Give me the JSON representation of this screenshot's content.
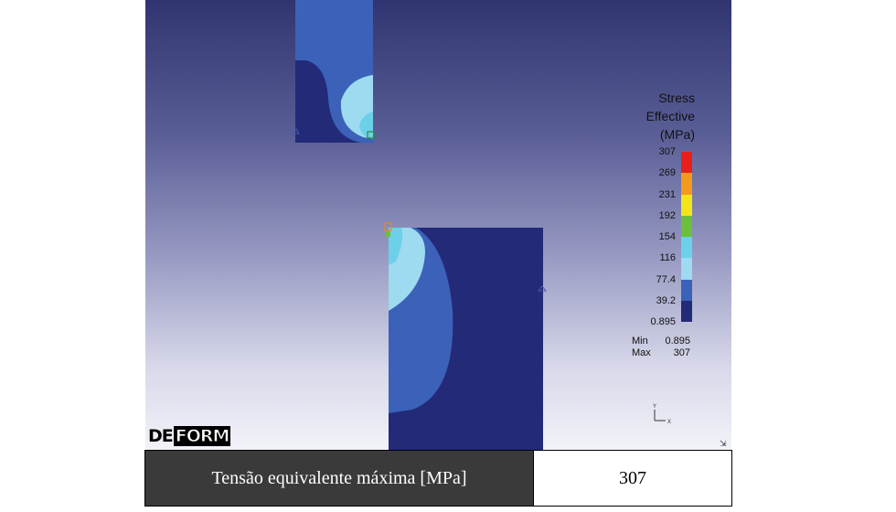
{
  "legend": {
    "title_lines": [
      "Stress",
      "Effective",
      "(MPa)"
    ],
    "ticks": [
      "307",
      "269",
      "231",
      "192",
      "154",
      "116",
      "77.4",
      "39.2",
      "0.895"
    ],
    "colors": [
      "#e8201c",
      "#f39a1c",
      "#f4e41a",
      "#6cbf3c",
      "#6cd0e8",
      "#9edaf0",
      "#3b62b8",
      "#232a78"
    ],
    "min_label": "Min",
    "min_value": "0.895",
    "max_label": "Max",
    "max_value": "307"
  },
  "axes": {
    "y": "Y",
    "x": "X"
  },
  "logo": {
    "part1": "DE",
    "part2": "FORM"
  },
  "table": {
    "label": "Tensão equivalente máxima [MPa]",
    "value": "307"
  },
  "colors": {
    "background_top": "#303470",
    "background_bottom": "#f2f2f8",
    "low_stress": "#232a78",
    "mid_stress": "#3b62b8",
    "high_stress": "#9edaf0",
    "table_label_bg": "#3a3a3a"
  }
}
